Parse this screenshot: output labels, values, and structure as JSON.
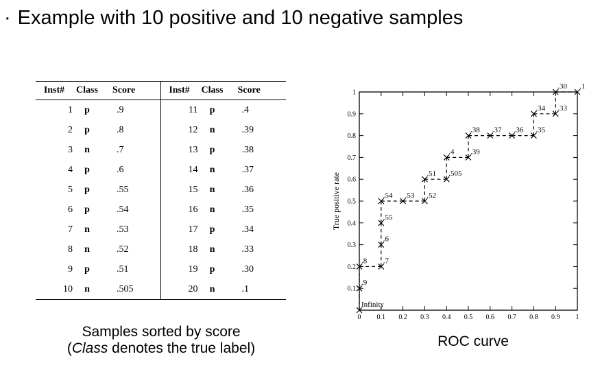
{
  "headline": {
    "bullet": "·",
    "text": "Example with 10 positive and 10 negative samples"
  },
  "table": {
    "headers": [
      "Inst#",
      "Class",
      "Score",
      "Inst#",
      "Class",
      "Score"
    ],
    "rows": [
      {
        "inst": "1",
        "cls": "p",
        "score": ".9"
      },
      {
        "inst": "2",
        "cls": "p",
        "score": ".8"
      },
      {
        "inst": "3",
        "cls": "n",
        "score": ".7"
      },
      {
        "inst": "4",
        "cls": "p",
        "score": ".6"
      },
      {
        "inst": "5",
        "cls": "p",
        "score": ".55"
      },
      {
        "inst": "6",
        "cls": "p",
        "score": ".54"
      },
      {
        "inst": "7",
        "cls": "n",
        "score": ".53"
      },
      {
        "inst": "8",
        "cls": "n",
        "score": ".52"
      },
      {
        "inst": "9",
        "cls": "p",
        "score": ".51"
      },
      {
        "inst": "10",
        "cls": "n",
        "score": ".505"
      },
      {
        "inst": "11",
        "cls": "p",
        "score": ".4"
      },
      {
        "inst": "12",
        "cls": "n",
        "score": ".39"
      },
      {
        "inst": "13",
        "cls": "p",
        "score": ".38"
      },
      {
        "inst": "14",
        "cls": "n",
        "score": ".37"
      },
      {
        "inst": "15",
        "cls": "n",
        "score": ".36"
      },
      {
        "inst": "16",
        "cls": "n",
        "score": ".35"
      },
      {
        "inst": "17",
        "cls": "p",
        "score": ".34"
      },
      {
        "inst": "18",
        "cls": "n",
        "score": ".33"
      },
      {
        "inst": "19",
        "cls": "p",
        "score": ".30"
      },
      {
        "inst": "20",
        "cls": "n",
        "score": ".1"
      }
    ]
  },
  "caption_left": {
    "line1": "Samples sorted by score",
    "line2_prefix": "(",
    "line2_italic": "Class",
    "line2_suffix": " denotes the true label)"
  },
  "caption_right": "ROC curve",
  "chart_data": {
    "type": "line",
    "title": "",
    "xlabel": "False positive rate",
    "ylabel": "True positive rate",
    "xlim": [
      0,
      1
    ],
    "ylim": [
      0,
      1
    ],
    "x_ticks": [
      "0",
      "0.1",
      "0.2",
      "0.3",
      "0.4",
      "0.5",
      "0.6",
      "0.7",
      "0.8",
      "0.9",
      "1"
    ],
    "y_ticks": [
      "0",
      "0.1",
      "0.2",
      "0.3",
      "0.4",
      "0.5",
      "0.6",
      "0.7",
      "0.8",
      "0.9",
      "1"
    ],
    "grid": false,
    "line_style": "dashed",
    "marker": "x",
    "points": [
      {
        "x": 0.0,
        "y": 0.0,
        "label": "Infinity"
      },
      {
        "x": 0.0,
        "y": 0.1,
        "label": ".9"
      },
      {
        "x": 0.0,
        "y": 0.2,
        "label": ".8"
      },
      {
        "x": 0.1,
        "y": 0.2,
        "label": ".7"
      },
      {
        "x": 0.1,
        "y": 0.3,
        "label": ".6"
      },
      {
        "x": 0.1,
        "y": 0.4,
        "label": ".55"
      },
      {
        "x": 0.1,
        "y": 0.5,
        "label": ".54"
      },
      {
        "x": 0.2,
        "y": 0.5,
        "label": ".53"
      },
      {
        "x": 0.3,
        "y": 0.5,
        "label": ".52"
      },
      {
        "x": 0.3,
        "y": 0.6,
        "label": ".51"
      },
      {
        "x": 0.4,
        "y": 0.6,
        "label": ".505"
      },
      {
        "x": 0.4,
        "y": 0.7,
        "label": ".4"
      },
      {
        "x": 0.5,
        "y": 0.7,
        "label": ".39"
      },
      {
        "x": 0.5,
        "y": 0.8,
        "label": ".38"
      },
      {
        "x": 0.6,
        "y": 0.8,
        "label": ".37"
      },
      {
        "x": 0.7,
        "y": 0.8,
        "label": ".36"
      },
      {
        "x": 0.8,
        "y": 0.8,
        "label": ".35"
      },
      {
        "x": 0.8,
        "y": 0.9,
        "label": ".34"
      },
      {
        "x": 0.9,
        "y": 0.9,
        "label": ".33"
      },
      {
        "x": 0.9,
        "y": 1.0,
        "label": ".30"
      },
      {
        "x": 1.0,
        "y": 1.0,
        "label": ".1"
      }
    ]
  }
}
